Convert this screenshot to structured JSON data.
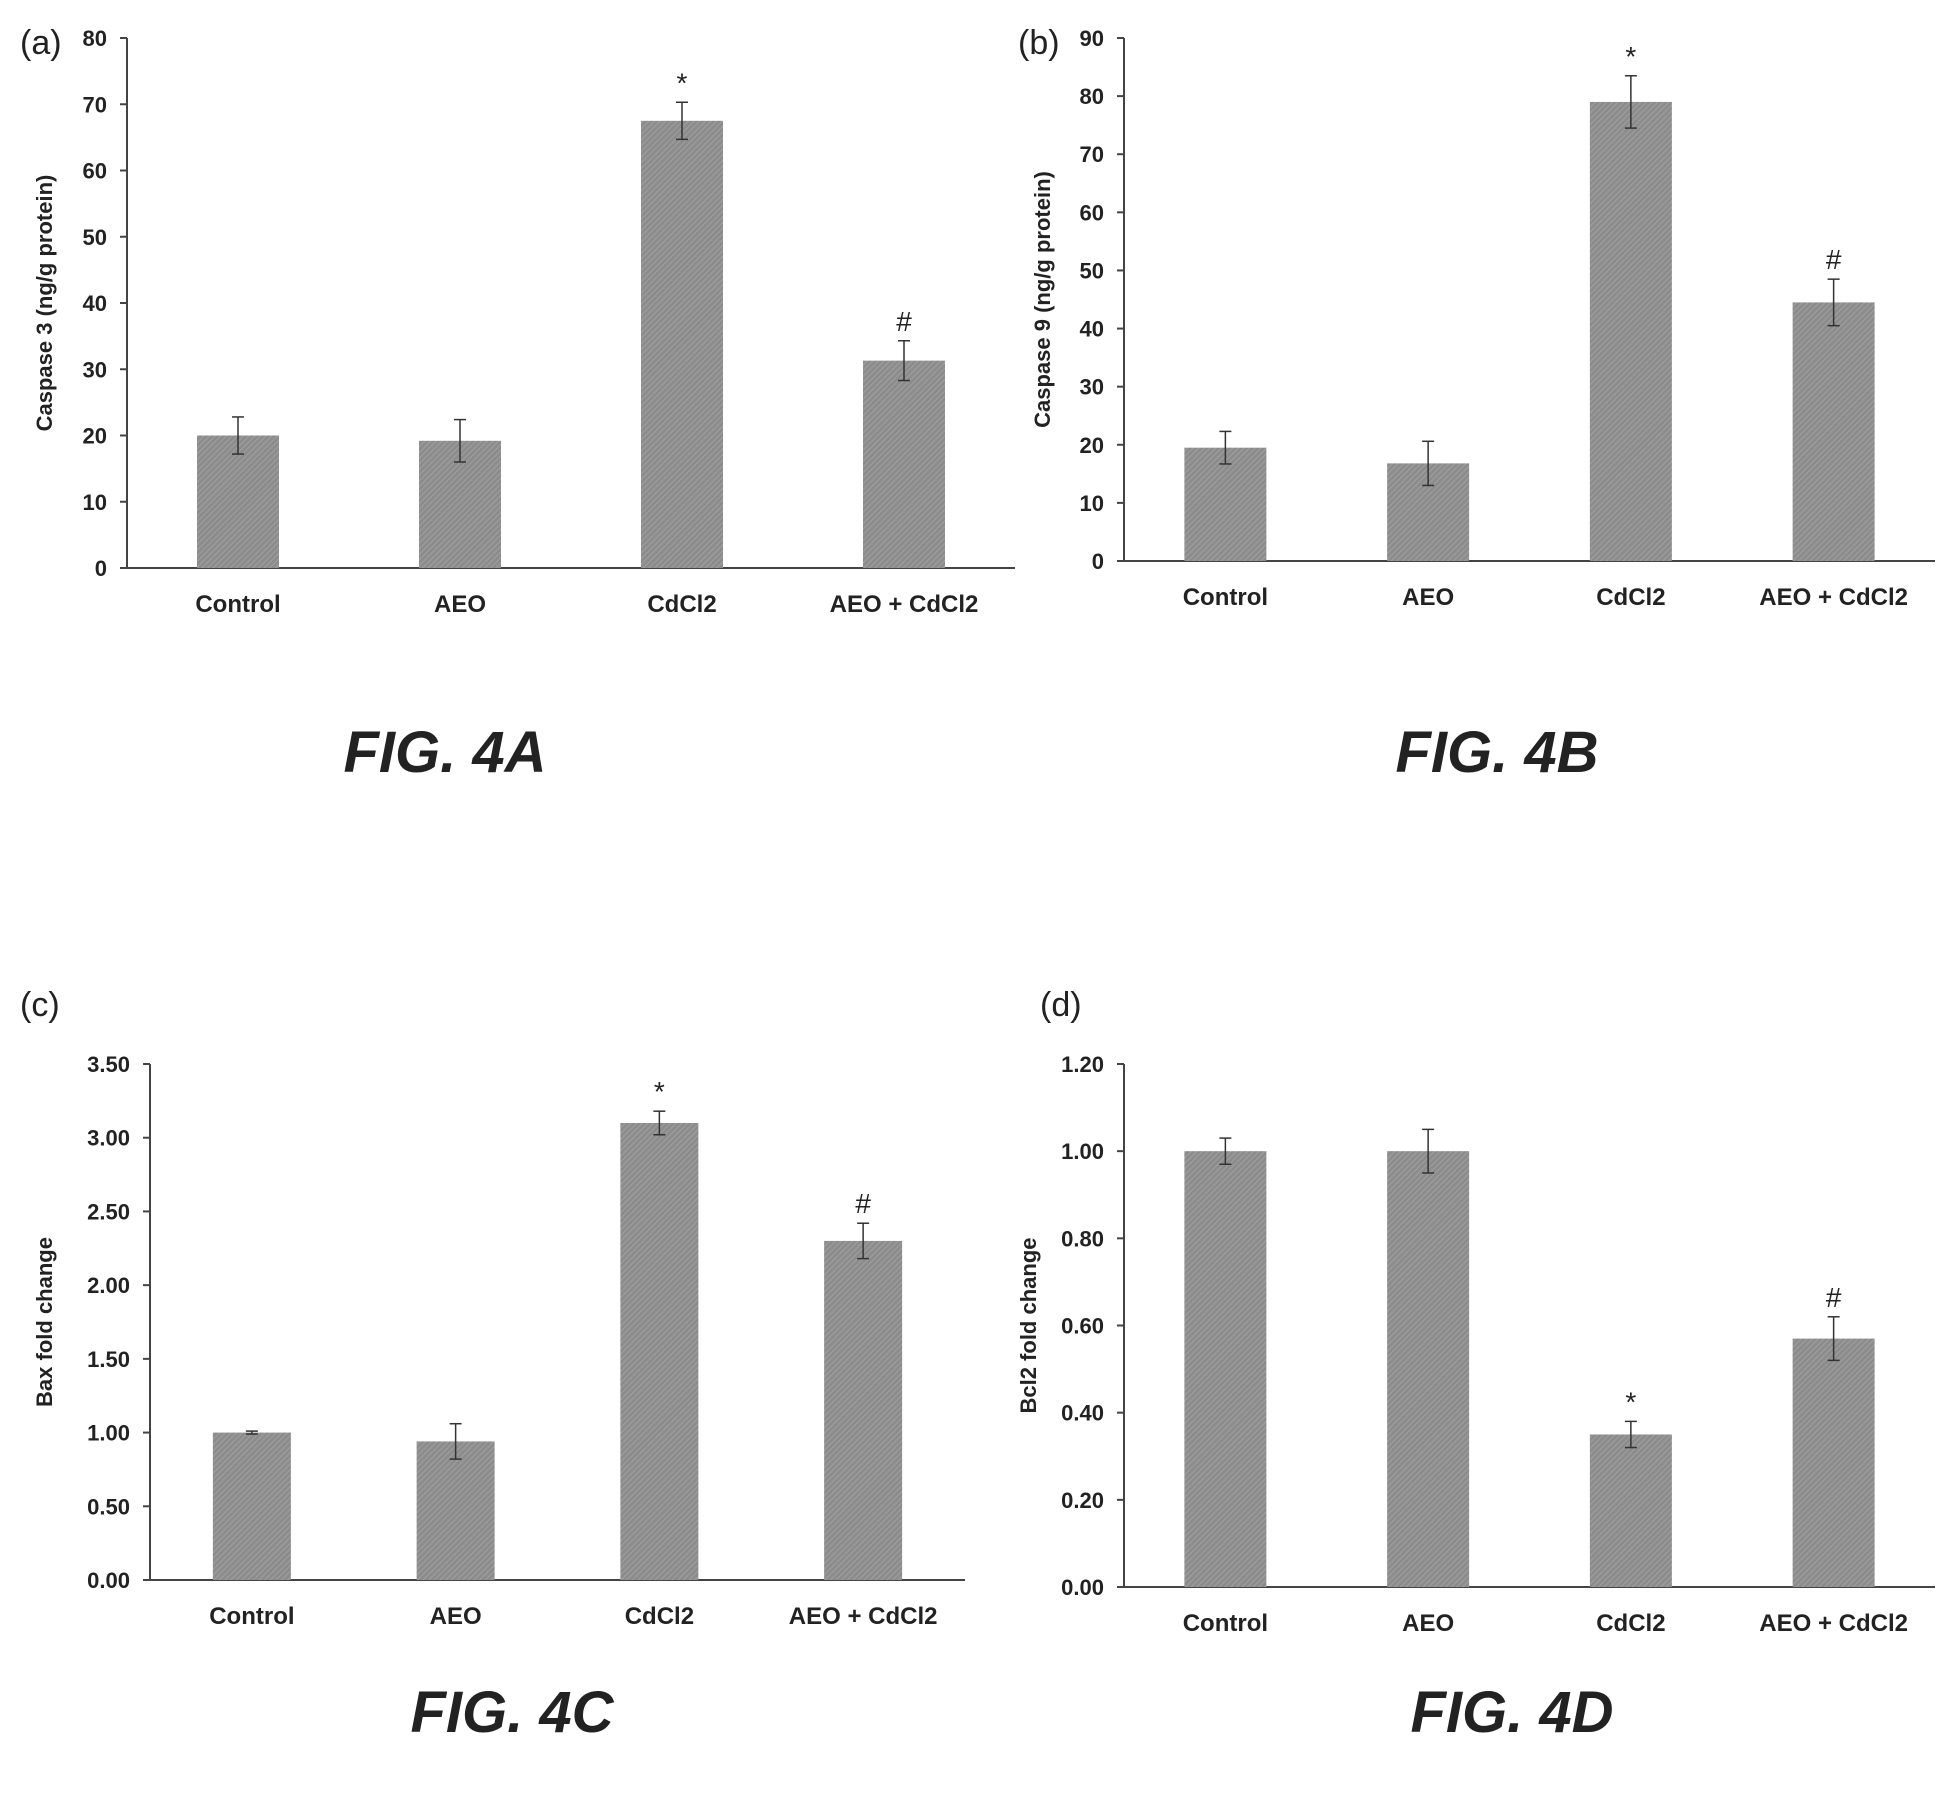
{
  "colors": {
    "bar": "#8c8c8c",
    "axis": "#444444",
    "text": "#222222"
  },
  "chart_data": [
    {
      "type": "bar",
      "panel_label": "(a)",
      "caption": "FIG. 4A",
      "ylabel": "Caspase 3 (ng/g protein)",
      "xlabel": "",
      "categories": [
        "Control",
        "AEO",
        "CdCl2",
        "AEO + CdCl2"
      ],
      "values": [
        20,
        19.2,
        67.5,
        31.3
      ],
      "errors": [
        2.8,
        3.2,
        2.8,
        3.0
      ],
      "annotations": [
        "",
        "",
        "*",
        "#"
      ],
      "ylim": [
        0,
        80
      ],
      "yticks": [
        0,
        10,
        20,
        30,
        40,
        50,
        60,
        70,
        80
      ],
      "ytick_labels": [
        "0",
        "10",
        "20",
        "30",
        "40",
        "50",
        "60",
        "70",
        "80"
      ],
      "grid": false
    },
    {
      "type": "bar",
      "panel_label": "(b)",
      "caption": "FIG. 4B",
      "ylabel": "Caspase 9 (ng/g protein)",
      "xlabel": "",
      "categories": [
        "Control",
        "AEO",
        "CdCl2",
        "AEO + CdCl2"
      ],
      "values": [
        19.5,
        16.8,
        79,
        44.5
      ],
      "errors": [
        2.8,
        3.8,
        4.5,
        4.0
      ],
      "annotations": [
        "",
        "",
        "*",
        "#"
      ],
      "ylim": [
        0,
        90
      ],
      "yticks": [
        0,
        10,
        20,
        30,
        40,
        50,
        60,
        70,
        80,
        90
      ],
      "ytick_labels": [
        "0",
        "10",
        "20",
        "30",
        "40",
        "50",
        "60",
        "70",
        "80",
        "90"
      ],
      "grid": false
    },
    {
      "type": "bar",
      "panel_label": "(c)",
      "caption": "FIG. 4C",
      "ylabel": "Bax fold change",
      "xlabel": "",
      "categories": [
        "Control",
        "AEO",
        "CdCl2",
        "AEO + CdCl2"
      ],
      "values": [
        1.0,
        0.94,
        3.1,
        2.3
      ],
      "errors": [
        0.01,
        0.12,
        0.08,
        0.12
      ],
      "annotations": [
        "",
        "",
        "*",
        "#"
      ],
      "ylim": [
        0,
        3.5
      ],
      "yticks": [
        0,
        0.5,
        1.0,
        1.5,
        2.0,
        2.5,
        3.0,
        3.5
      ],
      "ytick_labels": [
        "0.00",
        "0.50",
        "1.00",
        "1.50",
        "2.00",
        "2.50",
        "3.00",
        "3.50"
      ],
      "grid": false
    },
    {
      "type": "bar",
      "panel_label": "(d)",
      "caption": "FIG. 4D",
      "ylabel": "Bcl2 fold change",
      "xlabel": "",
      "categories": [
        "Control",
        "AEO",
        "CdCl2",
        "AEO + CdCl2"
      ],
      "values": [
        1.0,
        1.0,
        0.35,
        0.57
      ],
      "errors": [
        0.03,
        0.05,
        0.03,
        0.05
      ],
      "annotations": [
        "",
        "",
        "*",
        "#"
      ],
      "ylim": [
        0,
        1.2
      ],
      "yticks": [
        0,
        0.2,
        0.4,
        0.6,
        0.8,
        1.0,
        1.2
      ],
      "ytick_labels": [
        "0.00",
        "0.20",
        "0.40",
        "0.60",
        "0.80",
        "1.00",
        "1.20"
      ],
      "grid": false
    }
  ]
}
